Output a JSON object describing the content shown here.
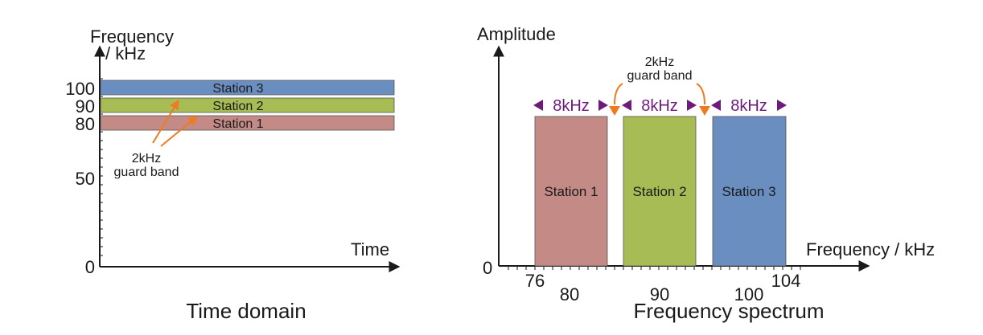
{
  "colors": {
    "station_1": "#c48a86",
    "station_2": "#a7bc55",
    "station_3": "#6b8ec0",
    "guard_arrow": "#f07a1e",
    "bandwidth_arrow": "#6d1b7a",
    "axis": "#1a1a1a"
  },
  "time_domain": {
    "caption": "Time domain",
    "y_axis_label_line1": "Frequency",
    "y_axis_label_line2": "/ kHz",
    "x_axis_label": "Time",
    "y_ticks": [
      "100",
      "90",
      "80",
      "50",
      "0"
    ],
    "guard_note_line1": "2kHz",
    "guard_note_line2": "guard band",
    "bands": [
      {
        "label": "Station 3",
        "center_khz": 100
      },
      {
        "label": "Station 2",
        "center_khz": 90
      },
      {
        "label": "Station 1",
        "center_khz": 80
      }
    ]
  },
  "frequency_spectrum": {
    "caption": "Frequency spectrum",
    "y_axis_label": "Amplitude",
    "x_axis_label": "Frequency / kHz",
    "origin_label": "0",
    "x_ticks": [
      "76",
      "80",
      "90",
      "100",
      "104"
    ],
    "guard_note_line1": "2kHz",
    "guard_note_line2": "guard band",
    "bandwidth_label": "8kHz",
    "stations": [
      {
        "label": "Station 1",
        "range_khz": [
          76,
          84
        ]
      },
      {
        "label": "Station 2",
        "range_khz": [
          86,
          94
        ]
      },
      {
        "label": "Station 3",
        "range_khz": [
          96,
          104
        ]
      }
    ]
  }
}
